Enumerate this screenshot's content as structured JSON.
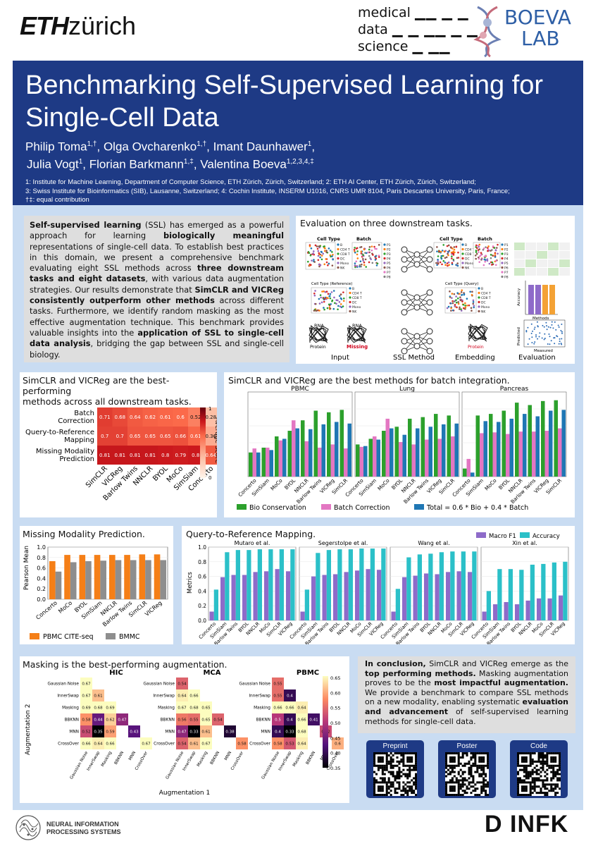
{
  "header": {
    "eth_logo_bold": "ETH",
    "eth_logo_rest": "zürich",
    "mds_logo": [
      "medical",
      "data",
      "science"
    ],
    "boeva_logo": [
      "BOEVA",
      "LAB"
    ]
  },
  "title": "Benchmarking Self-Supervised Learning for Single-Cell Data",
  "authors_line1": [
    {
      "name": "Philip Toma",
      "sup": "1,†"
    },
    {
      "name": "Olga Ovcharenko",
      "sup": "1,†"
    },
    {
      "name": "Imant Daunhawer",
      "sup": "1"
    }
  ],
  "authors_line2": [
    {
      "name": "Julia Vogt",
      "sup": "1"
    },
    {
      "name": "Florian Barkmann",
      "sup": "1,‡"
    },
    {
      "name": "Valentina Boeva",
      "sup": "1,2,3,4,‡"
    }
  ],
  "affiliations": [
    "1: Institute for Machine Learning, Department of Computer Science, ETH Zürich, Zürich, Switzerland; 2: ETH AI Center, ETH Zürich, Zürich, Switzerland;",
    "3: Swiss Institute for Bioinformatics (SIB), Lausanne, Switzerland; 4: Cochin Institute, INSERM U1016, CNRS UMR 8104, Paris Descartes University, Paris, France;",
    "†‡: equal contribution"
  ],
  "abstract_segments": [
    {
      "t": "Self-supervised learning",
      "b": true
    },
    {
      "t": " (SSL) has emerged as a powerful approach for learning ",
      "b": false
    },
    {
      "t": "biologically meaningful",
      "b": true
    },
    {
      "t": " representations of single-cell data. To establish best practices in this domain, we present a comprehensive benchmark evaluating eight SSL methods across ",
      "b": false
    },
    {
      "t": "three downstream tasks and eight datasets",
      "b": true
    },
    {
      "t": ", with various data augmentation strategies. Our results demonstrate that ",
      "b": false
    },
    {
      "t": "SimCLR and VICReg consistently outperform other methods",
      "b": true
    },
    {
      "t": " across different tasks. Furthermore, we identify random masking as the most effective augmentation technique. This benchmark provides valuable insights into the ",
      "b": false
    },
    {
      "t": "application of SSL to single-cell data analysis",
      "b": true
    },
    {
      "t": ", bridging the gap between SSL and single-cell biology.",
      "b": false
    }
  ],
  "eval_panel": {
    "title": "Evaluation on three downstream tasks.",
    "labels": {
      "cell_type": "Cell Type",
      "batch": "Batch",
      "cell_type_ref": "Cell Type (Reference)",
      "cell_type_query": "Cell Type (Query)",
      "rna": "RNA",
      "protein": "Protein",
      "missing": "Missing",
      "input": "Input",
      "ssl_method": "SSL Method",
      "embedding": "Embedding",
      "evaluation": "Evaluation",
      "accuracy": "Accuracy",
      "methods": "Methods",
      "predicted": "Predicted",
      "measured": "Measured"
    },
    "cell_legend": [
      "B",
      "CD4 T",
      "CD8 T",
      "DC",
      "Mono",
      "NK"
    ],
    "batch_legend": [
      "P1",
      "P2",
      "P3",
      "P4",
      "P5",
      "P6",
      "P7",
      "P8"
    ]
  },
  "heatmap_panel": {
    "title_lines": [
      "SimCLR and VICReg are the best-performing",
      "methods across all downstream tasks."
    ],
    "rows": [
      "Batch",
      "Correction",
      "Query-to-Reference",
      "Mapping",
      "Missing Modality",
      "Prediction"
    ],
    "colorbar_label": "Average Score",
    "colorbar_ticks": [
      "1",
      "0"
    ]
  },
  "batch_panel": {
    "title": "SimCLR and VICReg are the best methods for batch integration.",
    "legend": [
      "Bio Conservation",
      "Batch Correction",
      "Total = 0.6 * Bio + 0.4 * Batch"
    ]
  },
  "mm_panel": {
    "title": "Missing Modality Prediction.",
    "ylabel": "Pearson Mean",
    "legend": [
      "PBMC CITE-seq",
      "BMMC"
    ]
  },
  "q2r_panel": {
    "title": "Query-to-Reference Mapping.",
    "ylabel": "Metrics",
    "legend": [
      "Macro F1",
      "Accuracy"
    ]
  },
  "masking_panel": {
    "title": "Masking is the best-performing augmentation.",
    "ylabel": "Augmentation 2",
    "xlabel": "Augmentation 1",
    "augs": [
      "Gaussian Noise",
      "InnerSwap",
      "Masking",
      "BBKNN",
      "MNN",
      "CrossOver"
    ],
    "colorbar_ticks": [
      "0.65",
      "0.60",
      "0.55",
      "0.50",
      "0.45",
      "0.40",
      "0.35"
    ]
  },
  "conclusion_segments": [
    {
      "t": "In conclusion,",
      "b": true
    },
    {
      "t": " SimCLR and VICReg emerge as the ",
      "b": false
    },
    {
      "t": "top performing methods.",
      "b": true
    },
    {
      "t": " Masking augmentation proves to be the ",
      "b": false
    },
    {
      "t": "most impactful augmentation.",
      "b": true
    },
    {
      "t": " We provide a benchmark to compare SSL methods on a new modality, enabling systematic ",
      "b": false
    },
    {
      "t": "evaluation and advancement",
      "b": true
    },
    {
      "t": " of self-supervised learning methods for single-cell data.",
      "b": false
    }
  ],
  "qr_cards": [
    "Preprint",
    "Poster",
    "Code"
  ],
  "footer": {
    "neurips_lines": [
      "NEURAL INFORMATION",
      "PROCESSING SYSTEMS"
    ],
    "infk": "D INFK"
  },
  "chart_data": [
    {
      "type": "heatmap",
      "id": "method-heatmap",
      "rows": [
        "Batch Correction",
        "Query-to-Reference Mapping",
        "Missing Modality Prediction"
      ],
      "columns": [
        "SimCLR",
        "VICReg",
        "Barlow Twins",
        "NNCLR",
        "BYOL",
        "MoCo",
        "SimSiam",
        "Concerto"
      ],
      "values": [
        [
          0.71,
          0.68,
          0.64,
          0.62,
          0.61,
          0.6,
          0.52,
          0.28
        ],
        [
          0.7,
          0.7,
          0.65,
          0.65,
          0.65,
          0.66,
          0.61,
          0.36
        ],
        [
          0.81,
          0.81,
          0.81,
          0.81,
          0.8,
          0.79,
          0.8,
          0.64
        ]
      ],
      "colorbar_range": [
        0,
        1
      ]
    },
    {
      "type": "bar",
      "id": "batch-integration",
      "panels": [
        "PBMC",
        "Lung",
        "Pancreas"
      ],
      "categories": [
        "Concerto",
        "SimSiam",
        "MoCo",
        "BYOL",
        "NNCLR",
        "Barlow Twins",
        "VICReg",
        "SimCLR"
      ],
      "series_names": [
        "Bio Conservation",
        "Batch Correction",
        "Total = 0.6 * Bio + 0.4 * Batch"
      ],
      "data": {
        "PBMC": {
          "Bio Conservation": [
            0.3,
            0.36,
            0.5,
            0.57,
            0.7,
            0.82,
            0.8,
            0.83
          ],
          "Batch Correction": [
            0.35,
            0.36,
            0.45,
            0.7,
            0.44,
            0.36,
            0.4,
            0.35
          ],
          "Total": [
            0.3,
            0.33,
            0.47,
            0.6,
            0.59,
            0.65,
            0.68,
            0.66
          ]
        },
        "Lung": {
          "Bio Conservation": [
            0.4,
            0.47,
            0.57,
            0.62,
            0.72,
            0.74,
            0.78,
            0.76
          ],
          "Batch Correction": [
            0.37,
            0.5,
            0.72,
            0.43,
            0.4,
            0.46,
            0.47,
            0.5
          ],
          "Total": [
            0.38,
            0.46,
            0.6,
            0.52,
            0.6,
            0.62,
            0.65,
            0.66
          ]
        },
        "Pancreas": {
          "Bio Conservation": [
            0.1,
            0.76,
            0.78,
            0.82,
            0.92,
            0.89,
            0.94,
            0.95
          ],
          "Batch Correction": [
            0.22,
            0.54,
            0.55,
            0.53,
            0.56,
            0.56,
            0.57,
            0.6
          ],
          "Total": [
            0.05,
            0.69,
            0.68,
            0.72,
            0.78,
            0.75,
            0.82,
            0.83
          ]
        }
      },
      "ylim": [
        0,
        1
      ]
    },
    {
      "type": "bar",
      "id": "missing-modality",
      "categories": [
        "Concerto",
        "MoCo",
        "BYOL",
        "SimSiam",
        "NNCLR",
        "Barlow Twins",
        "SimCLR",
        "VICReg"
      ],
      "series": [
        {
          "name": "PBMC CITE-seq",
          "values": [
            0.73,
            0.85,
            0.85,
            0.85,
            0.85,
            0.85,
            0.86,
            0.86
          ]
        },
        {
          "name": "BMMC",
          "values": [
            0.53,
            0.71,
            0.73,
            0.74,
            0.75,
            0.75,
            0.75,
            0.75
          ]
        }
      ],
      "ylabel": "Pearson Mean",
      "ylim": [
        0,
        1.0
      ],
      "yticks": [
        0.0,
        0.2,
        0.4,
        0.6,
        0.8,
        1.0
      ]
    },
    {
      "type": "bar",
      "id": "query-to-reference",
      "panels": [
        "Mutaro et al.",
        "Segerstolpe et al.",
        "Wang et al.",
        "Xin et al."
      ],
      "categories": [
        "Concerto",
        "SimSiam",
        "Barlow Twins",
        "BYOL",
        "NNCLR",
        "MoCo",
        "SimCLR",
        "VICReg"
      ],
      "data": {
        "Mutaro et al.": {
          "Macro F1": [
            0.12,
            0.59,
            0.62,
            0.62,
            0.66,
            0.67,
            0.7,
            0.67
          ],
          "Accuracy": [
            0.42,
            0.93,
            0.96,
            0.96,
            0.97,
            0.97,
            0.97,
            0.97
          ]
        },
        "Segerstolpe et al.": {
          "Macro F1": [
            0.12,
            0.6,
            0.62,
            0.63,
            0.66,
            0.68,
            0.7,
            0.69
          ],
          "Accuracy": [
            0.42,
            0.92,
            0.96,
            0.97,
            0.97,
            0.98,
            0.98,
            0.98
          ]
        },
        "Wang et al.": {
          "Macro F1": [
            0.12,
            0.59,
            0.61,
            0.64,
            0.63,
            0.66,
            0.67,
            0.66
          ],
          "Accuracy": [
            0.43,
            0.86,
            0.9,
            0.91,
            0.93,
            0.94,
            0.94,
            0.94
          ]
        },
        "Xin et al.": {
          "Macro F1": [
            0.12,
            0.22,
            0.25,
            0.22,
            0.27,
            0.3,
            0.3,
            0.34
          ],
          "Accuracy": [
            0.4,
            0.7,
            0.7,
            0.69,
            0.76,
            0.77,
            0.79,
            0.8
          ]
        }
      },
      "ylabel": "Metrics",
      "ylim": [
        0,
        1.0
      ],
      "yticks": [
        0.0,
        0.2,
        0.4,
        0.6,
        0.8,
        1.0
      ]
    },
    {
      "type": "heatmap",
      "id": "augmentation-heatmaps",
      "panels": [
        "HIC",
        "MCA",
        "PBMC"
      ],
      "augmentations": [
        "Gaussian Noise",
        "InnerSwap",
        "Masking",
        "BBKNN",
        "MNN",
        "CrossOver"
      ],
      "lower_triangular": {
        "HIC": [
          [
            0.67
          ],
          [
            0.67,
            0.61
          ],
          [
            0.69,
            0.68,
            0.69
          ],
          [
            0.58,
            0.44,
            0.62,
            0.47
          ],
          [
            0.52,
            0.35,
            0.59,
            null,
            0.43
          ],
          [
            0.66,
            0.64,
            0.66,
            null,
            null,
            0.67
          ]
        ],
        "MCA": [
          [
            0.54
          ],
          [
            0.64,
            0.66
          ],
          [
            0.67,
            0.68,
            0.65
          ],
          [
            0.56,
            0.55,
            0.65,
            0.54
          ],
          [
            0.47,
            0.33,
            0.61,
            null,
            0.38
          ],
          [
            0.54,
            0.61,
            0.67,
            null,
            null,
            0.58
          ]
        ],
        "PBMC": [
          [
            0.55
          ],
          [
            0.55,
            0.4
          ],
          [
            0.66,
            0.66,
            0.64
          ],
          [
            0.5,
            0.4,
            0.66,
            0.41
          ],
          [
            0.4,
            0.33,
            0.68,
            null,
            0.52
          ],
          [
            0.58,
            0.53,
            0.64,
            null,
            null,
            0.6
          ]
        ]
      },
      "colorbar_range": [
        0.35,
        0.65
      ]
    }
  ]
}
